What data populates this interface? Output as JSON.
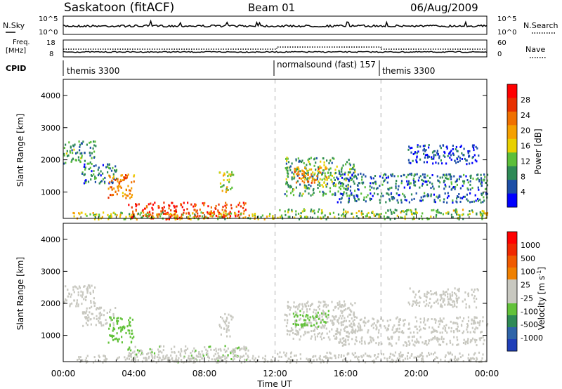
{
  "header": {
    "station_title": "Saskatoon (fitACF)",
    "beam_label": "Beam 01",
    "date_label": "06/Aug/2009"
  },
  "summary_panels": {
    "nsky": {
      "label": "N.Sky",
      "ticks": [
        "10^5",
        "10^0"
      ],
      "right_label": "N.Search",
      "right_ticks": [
        "10^5",
        "10^0"
      ]
    },
    "freq": {
      "label_line1": "Freq.",
      "label_line2": "[MHz]",
      "ticks": [
        "18",
        "8"
      ],
      "right_label": "Nave",
      "right_ticks": [
        "60",
        "0"
      ]
    },
    "cpid": {
      "label": "CPID",
      "segments": [
        {
          "label": "themis 3300",
          "start_hour": 0
        },
        {
          "label": "normalsound (fast) 157",
          "start_hour": 12
        },
        {
          "label": "themis 3300",
          "start_hour": 18
        }
      ]
    }
  },
  "colors": {
    "power_scale": [
      "#0000ff",
      "#1c4ea6",
      "#2e8a56",
      "#5cbf3a",
      "#e8d000",
      "#f5a000",
      "#f07000",
      "#e83000",
      "#ff0000"
    ],
    "velocity_scale": [
      "#1f3fb8",
      "#2e64a8",
      "#2e8a56",
      "#62c23a",
      "#c8c8c0",
      "#c8c8c0",
      "#f08000",
      "#f05a00",
      "#f02800",
      "#ff0000"
    ],
    "grid_dash": "#b0b0b0"
  },
  "chart_data": [
    {
      "type": "heatmap",
      "title": "Power",
      "ylabel": "Slant Range [km]",
      "xlabel": "Time UT",
      "xlim_hours": [
        0,
        24
      ],
      "ylim": [
        180,
        4500
      ],
      "x_tick_labels": [
        "00:00",
        "04:00",
        "08:00",
        "12:00",
        "16:00",
        "20:00",
        "00:00"
      ],
      "y_ticks": [
        1000,
        2000,
        3000,
        4000
      ],
      "colorbar": {
        "label": "Power [dB]",
        "tick_labels": [
          "28",
          "24",
          "20",
          "16",
          "12",
          "8",
          "4"
        ],
        "range": [
          0,
          30
        ]
      },
      "echo_regions": [
        {
          "t0": 0.0,
          "t1": 1.8,
          "r0": 1900,
          "r1": 2600,
          "value": 9
        },
        {
          "t0": 1.0,
          "t1": 3.0,
          "r0": 1300,
          "r1": 1900,
          "value": 7
        },
        {
          "t0": 2.5,
          "t1": 4.0,
          "r0": 800,
          "r1": 1600,
          "value": 20
        },
        {
          "t0": 3.6,
          "t1": 10.5,
          "r0": 180,
          "r1": 700,
          "value": 25
        },
        {
          "t0": 0.5,
          "t1": 12.0,
          "r0": 180,
          "r1": 400,
          "value": 14
        },
        {
          "t0": 8.8,
          "t1": 9.6,
          "r0": 1000,
          "r1": 1700,
          "value": 14
        },
        {
          "t0": 12.0,
          "t1": 24.0,
          "r0": 180,
          "r1": 500,
          "value": 12
        },
        {
          "t0": 12.5,
          "t1": 16.5,
          "r0": 900,
          "r1": 2100,
          "value": 10
        },
        {
          "t0": 13.0,
          "t1": 15.0,
          "r0": 1300,
          "r1": 1800,
          "value": 19
        },
        {
          "t0": 15.5,
          "t1": 24.0,
          "r0": 1100,
          "r1": 1600,
          "value": 7
        },
        {
          "t0": 15.5,
          "t1": 24.0,
          "r0": 700,
          "r1": 1000,
          "value": 6
        },
        {
          "t0": 19.5,
          "t1": 23.5,
          "r0": 1900,
          "r1": 2500,
          "value": 4
        }
      ]
    },
    {
      "type": "heatmap",
      "title": "Velocity",
      "ylabel": "Slant Range [km]",
      "xlabel": "Time UT",
      "xlim_hours": [
        0,
        24
      ],
      "ylim": [
        180,
        4500
      ],
      "x_tick_labels": [
        "00:00",
        "04:00",
        "08:00",
        "12:00",
        "16:00",
        "20:00",
        "00:00"
      ],
      "y_ticks": [
        1000,
        2000,
        3000,
        4000
      ],
      "colorbar": {
        "label": "Velocity [m s",
        "label_superscript": "-1",
        "label_close": "]",
        "tick_labels": [
          "1000",
          "500",
          "100",
          "25",
          "-25",
          "-100",
          "-500",
          "-1000"
        ],
        "range": [
          -1000,
          1000
        ]
      },
      "echo_regions": [
        {
          "t0": 0.0,
          "t1": 1.8,
          "r0": 1900,
          "r1": 2600,
          "value": 0
        },
        {
          "t0": 1.0,
          "t1": 3.0,
          "r0": 1300,
          "r1": 1900,
          "value": 0
        },
        {
          "t0": 2.5,
          "t1": 4.0,
          "r0": 800,
          "r1": 1600,
          "value": -300
        },
        {
          "t0": 3.6,
          "t1": 10.5,
          "r0": 180,
          "r1": 700,
          "value": -150
        },
        {
          "t0": 0.5,
          "t1": 12.0,
          "r0": 180,
          "r1": 400,
          "value": 0
        },
        {
          "t0": 8.8,
          "t1": 9.6,
          "r0": 1000,
          "r1": 1700,
          "value": 120
        },
        {
          "t0": 12.0,
          "t1": 24.0,
          "r0": 180,
          "r1": 500,
          "value": -60
        },
        {
          "t0": 12.5,
          "t1": 16.5,
          "r0": 900,
          "r1": 2100,
          "value": 0
        },
        {
          "t0": 13.0,
          "t1": 15.0,
          "r0": 1300,
          "r1": 1800,
          "value": -300
        },
        {
          "t0": 15.5,
          "t1": 24.0,
          "r0": 1100,
          "r1": 1600,
          "value": 0
        },
        {
          "t0": 15.5,
          "t1": 24.0,
          "r0": 700,
          "r1": 1000,
          "value": 0
        },
        {
          "t0": 19.5,
          "t1": 23.5,
          "r0": 1900,
          "r1": 2500,
          "value": 0
        }
      ]
    }
  ]
}
